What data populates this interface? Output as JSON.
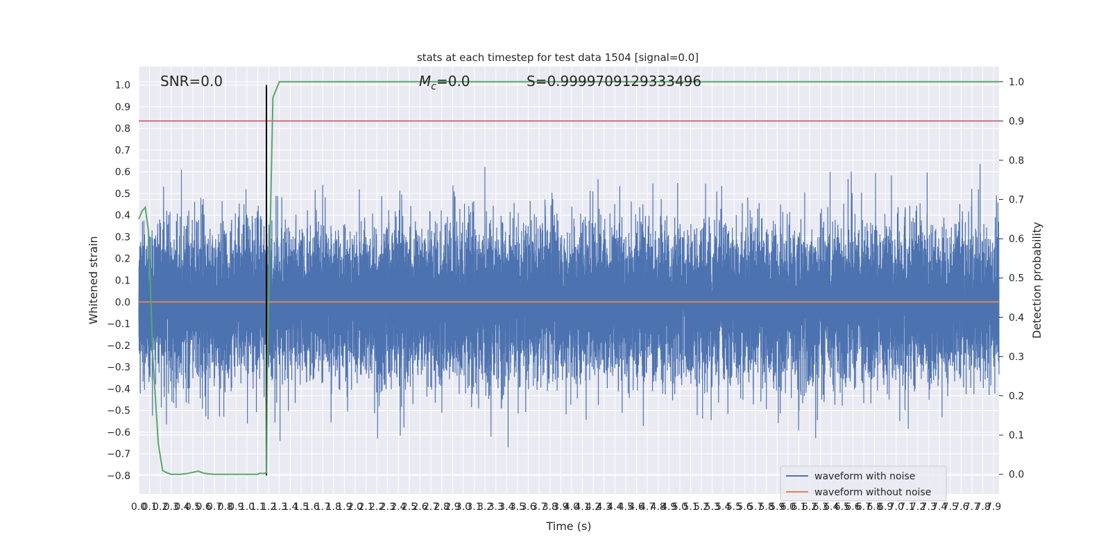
{
  "chart_data": {
    "type": "line",
    "title": "stats at each timestep for test data 1504 [signal=0.0]",
    "xlabel": "Time (s)",
    "ylabel_left": "Whitened strain",
    "ylabel_right": "Detection probability",
    "xlim": [
      0.0,
      7.95
    ],
    "ylim_left": [
      -0.885,
      1.085
    ],
    "ylim_right": [
      -0.05,
      1.0385
    ],
    "x_ticks": [
      "0.0",
      "0.1",
      "0.2",
      "0.3",
      "0.4",
      "0.5",
      "0.6",
      "0.7",
      "0.8",
      "0.9",
      "1.0",
      "1.1",
      "1.2",
      "1.3",
      "1.4",
      "1.5",
      "1.6",
      "1.7",
      "1.8",
      "1.9",
      "2.0",
      "2.1",
      "2.2",
      "2.3",
      "2.4",
      "2.5",
      "2.6",
      "2.7",
      "2.8",
      "2.9",
      "3.0",
      "3.1",
      "3.2",
      "3.3",
      "3.4",
      "3.5",
      "3.6",
      "3.7",
      "3.8",
      "3.9",
      "4.0",
      "4.1",
      "4.2",
      "4.3",
      "4.4",
      "4.5",
      "4.6",
      "4.7",
      "4.8",
      "4.9",
      "5.0",
      "5.1",
      "5.2",
      "5.3",
      "5.4",
      "5.5",
      "5.6",
      "5.7",
      "5.8",
      "5.9",
      "6.0",
      "6.1",
      "6.2",
      "6.3",
      "6.4",
      "6.5",
      "6.6",
      "6.7",
      "6.8",
      "6.9",
      "7.0",
      "7.1",
      "7.2",
      "7.3",
      "7.4",
      "7.5",
      "7.6",
      "7.7",
      "7.8",
      "7.9"
    ],
    "y_ticks_left": [
      "1.0",
      "0.9",
      "0.8",
      "0.7",
      "0.6",
      "0.5",
      "0.4",
      "0.3",
      "0.2",
      "0.1",
      "0.0",
      "−0.1",
      "−0.2",
      "−0.3",
      "−0.4",
      "−0.5",
      "−0.6",
      "−0.7",
      "−0.8"
    ],
    "y_ticks_right": [
      "1.0",
      "0.9",
      "0.8",
      "0.7",
      "0.6",
      "0.5",
      "0.4",
      "0.3",
      "0.2",
      "0.1",
      "0.0"
    ],
    "annotations": {
      "snr": "SNR=0.0",
      "mc_symbol": "M",
      "mc_sub": "c",
      "mc_value": "=0.0",
      "s": "S=0.9999709129333496"
    },
    "series": [
      {
        "name": "waveform with noise",
        "axis": "left",
        "color": "#4c72b0",
        "noise": {
          "points": 16000,
          "sigma": 0.17,
          "min": -0.8,
          "max": 1.0,
          "seed": 1504
        }
      },
      {
        "name": "waveform without noise",
        "axis": "left",
        "color": "#dd8452",
        "x": [
          0.0,
          7.95
        ],
        "y": [
          0.0,
          0.0
        ]
      },
      {
        "name": "",
        "axis": "right",
        "color": "#55a868",
        "x": [
          0.0,
          0.03,
          0.06,
          0.09,
          0.13,
          0.18,
          0.22,
          0.25,
          0.3,
          0.38,
          0.45,
          0.55,
          0.6,
          0.65,
          0.7,
          0.8,
          0.9,
          1.0,
          1.05,
          1.1,
          1.12,
          1.15,
          1.18,
          1.19,
          1.24,
          1.3,
          1.4,
          2.0,
          3.0,
          4.0,
          5.0,
          6.0,
          7.0,
          7.95
        ],
        "y": [
          0.65,
          0.67,
          0.68,
          0.62,
          0.3,
          0.08,
          0.01,
          0.005,
          0.0,
          0.0,
          0.002,
          0.008,
          0.003,
          0.001,
          0.0,
          0.0,
          0.0,
          0.0,
          0.0,
          0.0,
          0.003,
          0.002,
          0.004,
          0.3,
          0.96,
          1.0,
          1.0,
          1.0,
          1.0,
          1.0,
          1.0,
          1.0,
          1.0,
          1.0
        ]
      }
    ],
    "threshold": {
      "axis": "right",
      "value": 0.9,
      "color": "#c44e52"
    },
    "marker": {
      "x": 1.18,
      "y_from": -0.8,
      "y_to": 1.0,
      "color": "#000000"
    },
    "legend_placement": "lower-right",
    "grid": true
  }
}
